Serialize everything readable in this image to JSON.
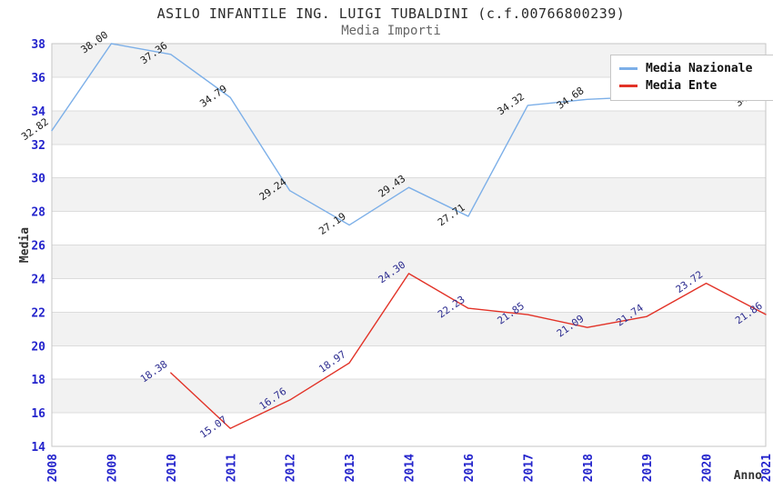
{
  "chart_data": {
    "type": "line",
    "title": "ASILO INFANTILE ING. LUIGI TUBALDINI (c.f.00766800239)",
    "subtitle": "Media Importi",
    "xlabel": "Anno",
    "ylabel": "Media",
    "ylim": [
      14,
      38
    ],
    "ytick_step": 2,
    "grid": true,
    "band_fill": "alternating-gray-from-top",
    "legend_position": "top-right",
    "categories": [
      "2008",
      "2009",
      "2010",
      "2011",
      "2012",
      "2013",
      "2014",
      "2016",
      "2017",
      "2018",
      "2019",
      "2020",
      "2021"
    ],
    "series": [
      {
        "name": "Media Nazionale",
        "color": "#7cafe8",
        "label_color": "#1a1a1a",
        "values": [
          32.82,
          38.0,
          37.36,
          34.79,
          29.24,
          27.19,
          29.43,
          27.71,
          34.32,
          34.68,
          34.85,
          34.97,
          34.83
        ],
        "point_labels": [
          "32.82",
          "38.00",
          "37.36",
          "34.79",
          "29.24",
          "27.19",
          "29.43",
          "27.71",
          "34.32",
          "34.68",
          null,
          null,
          "34.83"
        ]
      },
      {
        "name": "Media Ente",
        "color": "#e23227",
        "label_color": "#2b2b8f",
        "values": [
          null,
          null,
          18.38,
          15.07,
          16.76,
          18.97,
          24.3,
          22.23,
          21.85,
          21.09,
          21.74,
          23.72,
          21.86
        ],
        "point_labels": [
          null,
          null,
          "18.38",
          "15.07",
          "16.76",
          "18.97",
          "24.30",
          "22.23",
          "21.85",
          "21.09",
          "21.74",
          "23.72",
          "21.86"
        ]
      }
    ],
    "colors": {
      "tick_label": "#2424cc",
      "grid_line": "#dcdcdc",
      "band": "#f2f2f2",
      "plot_border": "#c6c6c6",
      "axis_title": "#333333",
      "title": "#2b2b2b",
      "subtitle": "#666666",
      "background": "#ffffff"
    }
  }
}
